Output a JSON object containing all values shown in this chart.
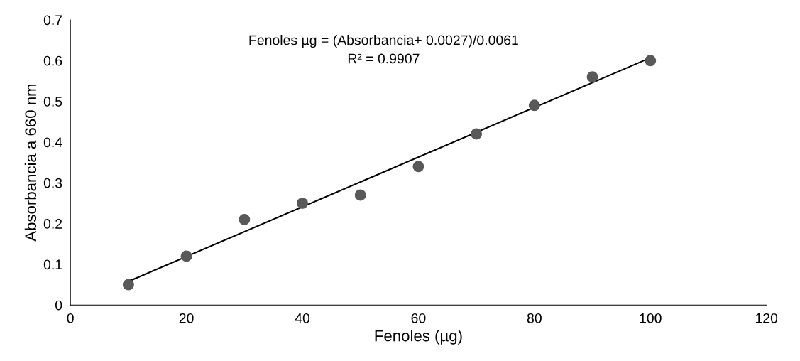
{
  "chart_data": {
    "type": "scatter",
    "xlabel": "Fenoles (µg)",
    "ylabel": "Absorbancia a 660 nm",
    "annotations": [
      "Fenoles µg = (Absorbancia+ 0.0027)/0.0061",
      "R² = 0.9907"
    ],
    "x": [
      10,
      20,
      30,
      40,
      50,
      60,
      70,
      80,
      90,
      100
    ],
    "series": [
      {
        "color": "#595959",
        "values": [
          0.05,
          0.12,
          0.21,
          0.25,
          0.27,
          0.34,
          0.42,
          0.49,
          0.56,
          0.6
        ]
      },
      {
        "type": "line",
        "color": "#000000",
        "x": [
          10,
          100
        ],
        "values": [
          0.058,
          0.607
        ]
      }
    ],
    "xlim": [
      0,
      120
    ],
    "xticks": [
      0,
      20,
      40,
      60,
      80,
      100,
      120
    ],
    "ylim": [
      0,
      0.7
    ],
    "yticks": [
      0,
      0.1,
      0.2,
      0.3,
      0.4,
      0.5,
      0.6,
      0.7
    ],
    "grid": false,
    "legend": false
  }
}
